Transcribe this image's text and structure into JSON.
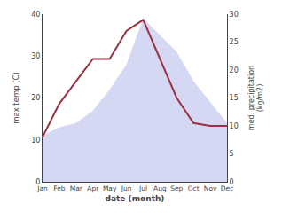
{
  "chart_data": {
    "type": "area_line",
    "categories": [
      "Jan",
      "Feb",
      "Mar",
      "Apr",
      "May",
      "Jun",
      "Jul",
      "Aug",
      "Sep",
      "Oct",
      "Nov",
      "Dec"
    ],
    "series": [
      {
        "type": "area",
        "color": "#b0b8e8",
        "values": [
          11,
          13,
          14,
          17,
          22,
          28,
          39,
          35,
          31,
          24,
          19,
          14
        ]
      },
      {
        "type": "line",
        "color": "#993344",
        "axis": "y2",
        "values": [
          8.0,
          14.0,
          18.0,
          22.0,
          22.0,
          27.0,
          29.0,
          22.0,
          15.0,
          10.5,
          10.0,
          10.0
        ]
      }
    ],
    "xlabel": "date (month)",
    "ylabel": "max temp (C)",
    "y2label": "med. precipitation\n(kg/m2)",
    "ylim": [
      0,
      40
    ],
    "yticks": [
      0,
      10,
      20,
      30,
      40
    ],
    "y2lim": [
      0,
      30
    ],
    "y2ticks": [
      0,
      5,
      10,
      15,
      20,
      25,
      30
    ],
    "grid": false,
    "color": "#ffffff"
  }
}
